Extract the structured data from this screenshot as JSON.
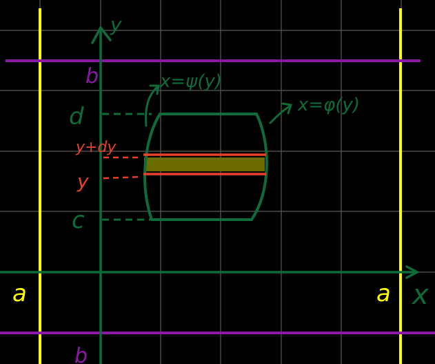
{
  "labels": {
    "y_axis": "y",
    "x_axis": "x",
    "a_left": "a",
    "a_right": "a",
    "b_top": "b",
    "b_bottom": "b",
    "d": "d",
    "c": "c",
    "y_plus_dy": "y+dy",
    "y": "y",
    "left_curve": "x=ψ(y)",
    "right_curve": "x=φ(y)"
  },
  "colors": {
    "background": "#000000",
    "grid": "#5a5a5a",
    "axes": "#0f6b3a",
    "region": "#0f6b3a",
    "yellow_lines": "#ffff00",
    "purple_lines": "#8a1aa6",
    "strip_lines": "#e8402a",
    "strip_fill": "#6b6b00",
    "labels_green": "#0f6b3a",
    "labels_yellow": "#ffff00",
    "labels_purple": "#8a1aa6",
    "labels_red": "#e8402a"
  }
}
